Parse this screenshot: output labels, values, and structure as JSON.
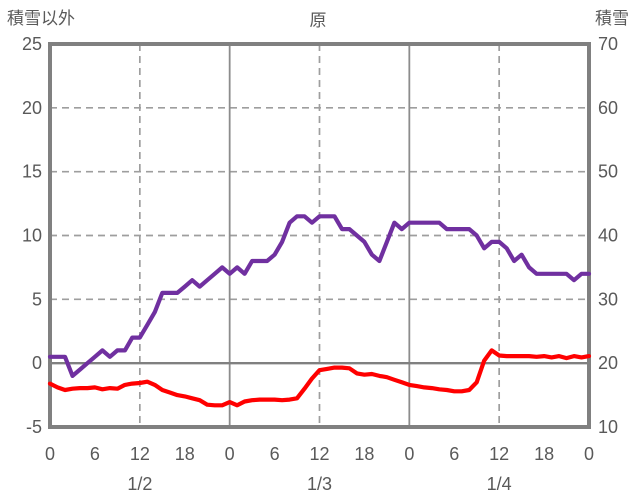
{
  "chart": {
    "title": "原",
    "left_axis_title": "積雪以外",
    "right_axis_title": "積雪"
  },
  "colors": {
    "background": "#FFFFFF",
    "frame": "#808080",
    "grid_dashed": "#9E9E9E",
    "zero_line": "#808080",
    "day_line": "#8C8C8C",
    "text": "#595959",
    "purple_series": "#7030A0",
    "red_series": "#FF0000"
  },
  "chart_data": {
    "type": "line",
    "title": "原",
    "x": {
      "unit": "hour",
      "start": 0,
      "end": 72,
      "step": 1,
      "tick_every": 6,
      "tick_labels": [
        "0",
        "6",
        "12",
        "18",
        "0",
        "6",
        "12",
        "18",
        "0",
        "6",
        "12",
        "18",
        "0"
      ],
      "date_labels": [
        {
          "label": "1/2",
          "hour": 12
        },
        {
          "label": "1/3",
          "hour": 36
        },
        {
          "label": "1/4",
          "hour": 60
        }
      ]
    },
    "left_axis": {
      "label": "積雪以外",
      "min": -5,
      "max": 25,
      "tick_step": 5,
      "tick_labels": [
        "25",
        "20",
        "15",
        "10",
        "5",
        "0",
        "-5"
      ]
    },
    "right_axis": {
      "label": "積雪",
      "min": 10,
      "max": 70,
      "tick_step": 10,
      "tick_labels": [
        "70",
        "60",
        "50",
        "40",
        "30",
        "20",
        "10"
      ]
    },
    "grid": {
      "horizontal_dashed_left_values": [
        20,
        15,
        10,
        5
      ],
      "zero_line_left_value": 0,
      "vertical_solid_hours": [
        24,
        48
      ],
      "vertical_dashed_hours": [
        12,
        36,
        60
      ]
    },
    "series": [
      {
        "name": "積雪",
        "axis": "right",
        "color": "#7030A0",
        "values": [
          21,
          21,
          21,
          18,
          19,
          20,
          21,
          22,
          21,
          22,
          22,
          24,
          24,
          26,
          28,
          31,
          31,
          31,
          32,
          33,
          32,
          33,
          34,
          35,
          34,
          35,
          34,
          36,
          36,
          36,
          37,
          39,
          42,
          43,
          43,
          42,
          43,
          43,
          43,
          41,
          41,
          40,
          39,
          37,
          36,
          39,
          42,
          41,
          42,
          42,
          42,
          42,
          42,
          41,
          41,
          41,
          41,
          40,
          38,
          39,
          39,
          38,
          36,
          37,
          35,
          34,
          34,
          34,
          34,
          34,
          33,
          34,
          34
        ]
      },
      {
        "name": "積雪以外",
        "axis": "left",
        "color": "#FF0000",
        "values": [
          -1.6,
          -1.9,
          -2.1,
          -2.0,
          -1.95,
          -1.95,
          -1.9,
          -2.05,
          -1.95,
          -2.0,
          -1.7,
          -1.6,
          -1.55,
          -1.45,
          -1.7,
          -2.1,
          -2.3,
          -2.5,
          -2.6,
          -2.75,
          -2.9,
          -3.25,
          -3.3,
          -3.3,
          -3.05,
          -3.3,
          -3.0,
          -2.9,
          -2.85,
          -2.85,
          -2.85,
          -2.9,
          -2.85,
          -2.75,
          -2.0,
          -1.2,
          -0.55,
          -0.45,
          -0.35,
          -0.35,
          -0.4,
          -0.8,
          -0.9,
          -0.85,
          -1.0,
          -1.1,
          -1.3,
          -1.5,
          -1.7,
          -1.8,
          -1.9,
          -1.95,
          -2.05,
          -2.1,
          -2.2,
          -2.2,
          -2.1,
          -1.5,
          0.2,
          1.0,
          0.6,
          0.55,
          0.55,
          0.55,
          0.55,
          0.5,
          0.55,
          0.45,
          0.55,
          0.4,
          0.55,
          0.45,
          0.55
        ]
      }
    ]
  }
}
